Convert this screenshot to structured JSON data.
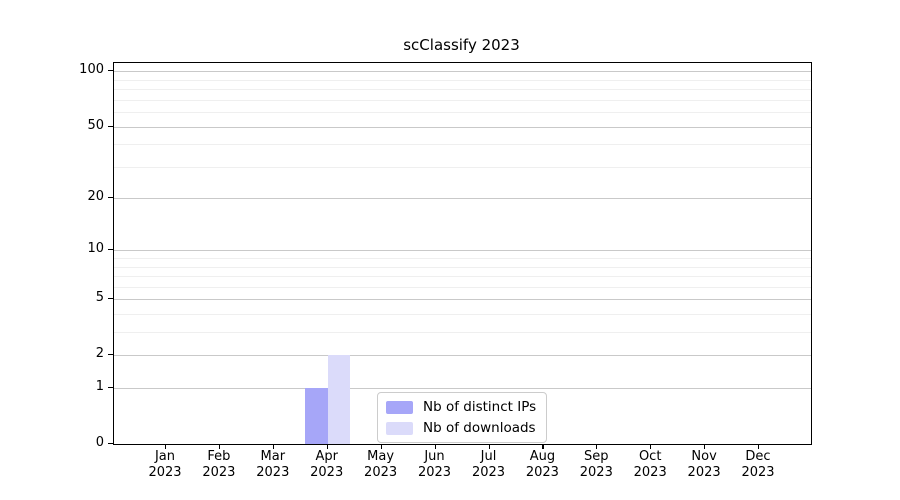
{
  "title": "scClassify 2023",
  "chart_data": {
    "type": "bar",
    "title": "scClassify 2023",
    "categories": [
      "Jan",
      "Feb",
      "Mar",
      "Apr",
      "May",
      "Jun",
      "Jul",
      "Aug",
      "Sep",
      "Oct",
      "Nov",
      "Dec"
    ],
    "year_label": "2023",
    "series": [
      {
        "name": "Nb of distinct IPs",
        "color": "#a6a6f8",
        "values": [
          0,
          0,
          0,
          1,
          0,
          0,
          0,
          0,
          0,
          0,
          0,
          0
        ]
      },
      {
        "name": "Nb of downloads",
        "color": "#dbdbfa",
        "values": [
          0,
          0,
          0,
          2,
          0,
          0,
          0,
          0,
          0,
          0,
          0,
          0
        ]
      }
    ],
    "xlabel": "",
    "ylabel": "",
    "y_scale": "log10(1+v)",
    "ylim": [
      0,
      111
    ],
    "y_ticks": [
      0,
      1,
      2,
      5,
      10,
      20,
      50,
      100
    ],
    "y_minor_gridlines": [
      3,
      4,
      6,
      7,
      8,
      9,
      30,
      40,
      60,
      70,
      80,
      90
    ],
    "grid": "horizontal, major and minor",
    "legend_position": "lower center inside plot",
    "legend_entries": [
      "Nb of distinct IPs",
      "Nb of downloads"
    ]
  }
}
